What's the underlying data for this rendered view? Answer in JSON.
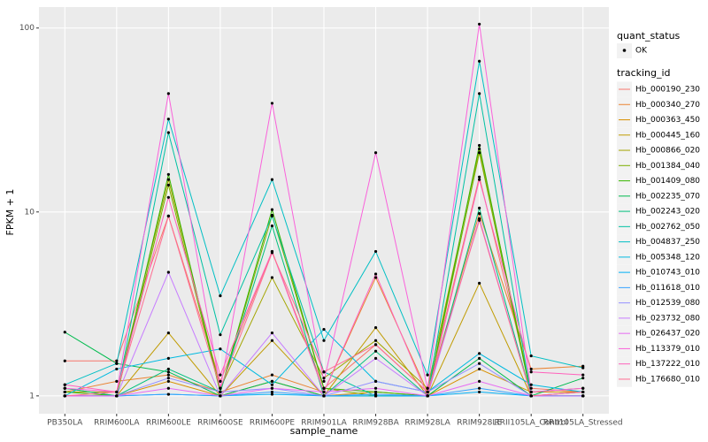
{
  "chart_data": {
    "type": "line",
    "x_label": "sample_name",
    "y_label": "FPKM + 1",
    "log_y": true,
    "grid": true,
    "categories": [
      "PB350LA",
      "RRIM600LA",
      "RRIM600LE",
      "RRIM600SE",
      "RRIM600PE",
      "RRIM901LA",
      "RRIM928BA",
      "RRIM928LA",
      "RRIM928LE",
      "RRII105LA_Control",
      "RRII105LA_Stressed"
    ],
    "ylim": [
      0.8,
      130
    ],
    "yticks": [
      1,
      10,
      100
    ],
    "shape_legend": {
      "title": "quant_status",
      "labels": [
        "OK"
      ]
    },
    "color_legend_title": "tracking_id",
    "series": [
      {
        "name": "Hb_000190_230",
        "color": "#F8766D",
        "values": [
          1.55,
          1.55,
          9.5,
          1.2,
          6.1,
          1.1,
          1.9,
          1.05,
          15.5,
          1.1,
          1.05
        ]
      },
      {
        "name": "Hb_000340_270",
        "color": "#EA8331",
        "values": [
          1.05,
          1.2,
          1.3,
          1.05,
          1.3,
          1.05,
          4.4,
          1.05,
          9.8,
          1.4,
          1.45
        ]
      },
      {
        "name": "Hb_000363_450",
        "color": "#D89000",
        "values": [
          1.0,
          1.0,
          1.2,
          1.0,
          1.2,
          1.0,
          1.05,
          1.0,
          1.4,
          1.05,
          1.05
        ]
      },
      {
        "name": "Hb_000445_160",
        "color": "#C09B00",
        "values": [
          1.1,
          1.0,
          2.2,
          1.0,
          2.0,
          1.0,
          2.35,
          1.0,
          4.1,
          1.0,
          1.0
        ]
      },
      {
        "name": "Hb_000866_020",
        "color": "#A3A500",
        "values": [
          1.05,
          1.05,
          15,
          1.1,
          4.4,
          1.25,
          2.0,
          1.1,
          22,
          1.05,
          1.1
        ]
      },
      {
        "name": "Hb_001384_040",
        "color": "#7CAE00",
        "values": [
          1.0,
          1.0,
          14,
          1.05,
          9.6,
          1.1,
          1.0,
          1.0,
          21,
          1.0,
          1.0
        ]
      },
      {
        "name": "Hb_001409_080",
        "color": "#39B600",
        "values": [
          1.05,
          1.0,
          16,
          1.05,
          10.3,
          1.1,
          1.05,
          1.0,
          23,
          1.0,
          1.0
        ]
      },
      {
        "name": "Hb_002235_070",
        "color": "#00BB4E",
        "values": [
          2.22,
          1.5,
          1.35,
          1.0,
          1.2,
          1.0,
          1.0,
          1.0,
          1.6,
          1.0,
          1.25
        ]
      },
      {
        "name": "Hb_002243_020",
        "color": "#00BF7D",
        "values": [
          1.1,
          1.0,
          1.4,
          1.05,
          8.4,
          1.0,
          1.75,
          1.0,
          10.5,
          1.0,
          1.05
        ]
      },
      {
        "name": "Hb_002762_050",
        "color": "#00C1A3",
        "values": [
          1.0,
          1.0,
          27,
          2.15,
          9.5,
          1.35,
          1.0,
          1.0,
          44,
          1.0,
          1.0
        ]
      },
      {
        "name": "Hb_004837_250",
        "color": "#00BFC4",
        "values": [
          1.15,
          1.5,
          32,
          3.5,
          15,
          2.0,
          6.1,
          1.3,
          66,
          1.65,
          1.42
        ]
      },
      {
        "name": "Hb_005348_120",
        "color": "#00BAE0",
        "values": [
          1.0,
          1.4,
          1.6,
          1.8,
          1.15,
          2.3,
          1.2,
          1.05,
          1.7,
          1.15,
          1.05
        ]
      },
      {
        "name": "Hb_010743_010",
        "color": "#00B0F6",
        "values": [
          1.0,
          1.0,
          1.02,
          1.0,
          1.02,
          1.0,
          1.0,
          1.0,
          1.05,
          1.0,
          1.0
        ]
      },
      {
        "name": "Hb_011618_010",
        "color": "#35A2FF",
        "values": [
          1.0,
          1.0,
          1.02,
          1.0,
          1.05,
          1.0,
          1.02,
          1.0,
          1.1,
          1.0,
          1.0
        ]
      },
      {
        "name": "Hb_012539_080",
        "color": "#9590FF",
        "values": [
          1.0,
          1.0,
          1.25,
          1.05,
          1.1,
          1.0,
          1.2,
          1.05,
          1.5,
          1.0,
          1.0
        ]
      },
      {
        "name": "Hb_023732_080",
        "color": "#C77CFF",
        "values": [
          1.0,
          1.0,
          4.7,
          1.0,
          2.2,
          1.0,
          1.6,
          1.0,
          9.2,
          1.0,
          1.0
        ]
      },
      {
        "name": "Hb_026437_020",
        "color": "#E76BF3",
        "values": [
          1.0,
          1.0,
          1.1,
          1.0,
          1.1,
          1.05,
          1.1,
          1.0,
          1.2,
          1.0,
          1.05
        ]
      },
      {
        "name": "Hb_113379_010",
        "color": "#FA62DB",
        "values": [
          1.1,
          1.05,
          44,
          1.1,
          39,
          1.2,
          21,
          1.1,
          105,
          1.05,
          1.1
        ]
      },
      {
        "name": "Hb_137222_010",
        "color": "#FF62BC",
        "values": [
          1.15,
          1.05,
          12,
          1.3,
          6.1,
          1.05,
          4.6,
          1.0,
          15,
          1.35,
          1.3
        ]
      },
      {
        "name": "Hb_176680_010",
        "color": "#FF6C91",
        "values": [
          1.0,
          1.05,
          9.5,
          1.1,
          6.0,
          1.35,
          1.9,
          1.05,
          9.0,
          1.0,
          1.05
        ]
      }
    ]
  }
}
